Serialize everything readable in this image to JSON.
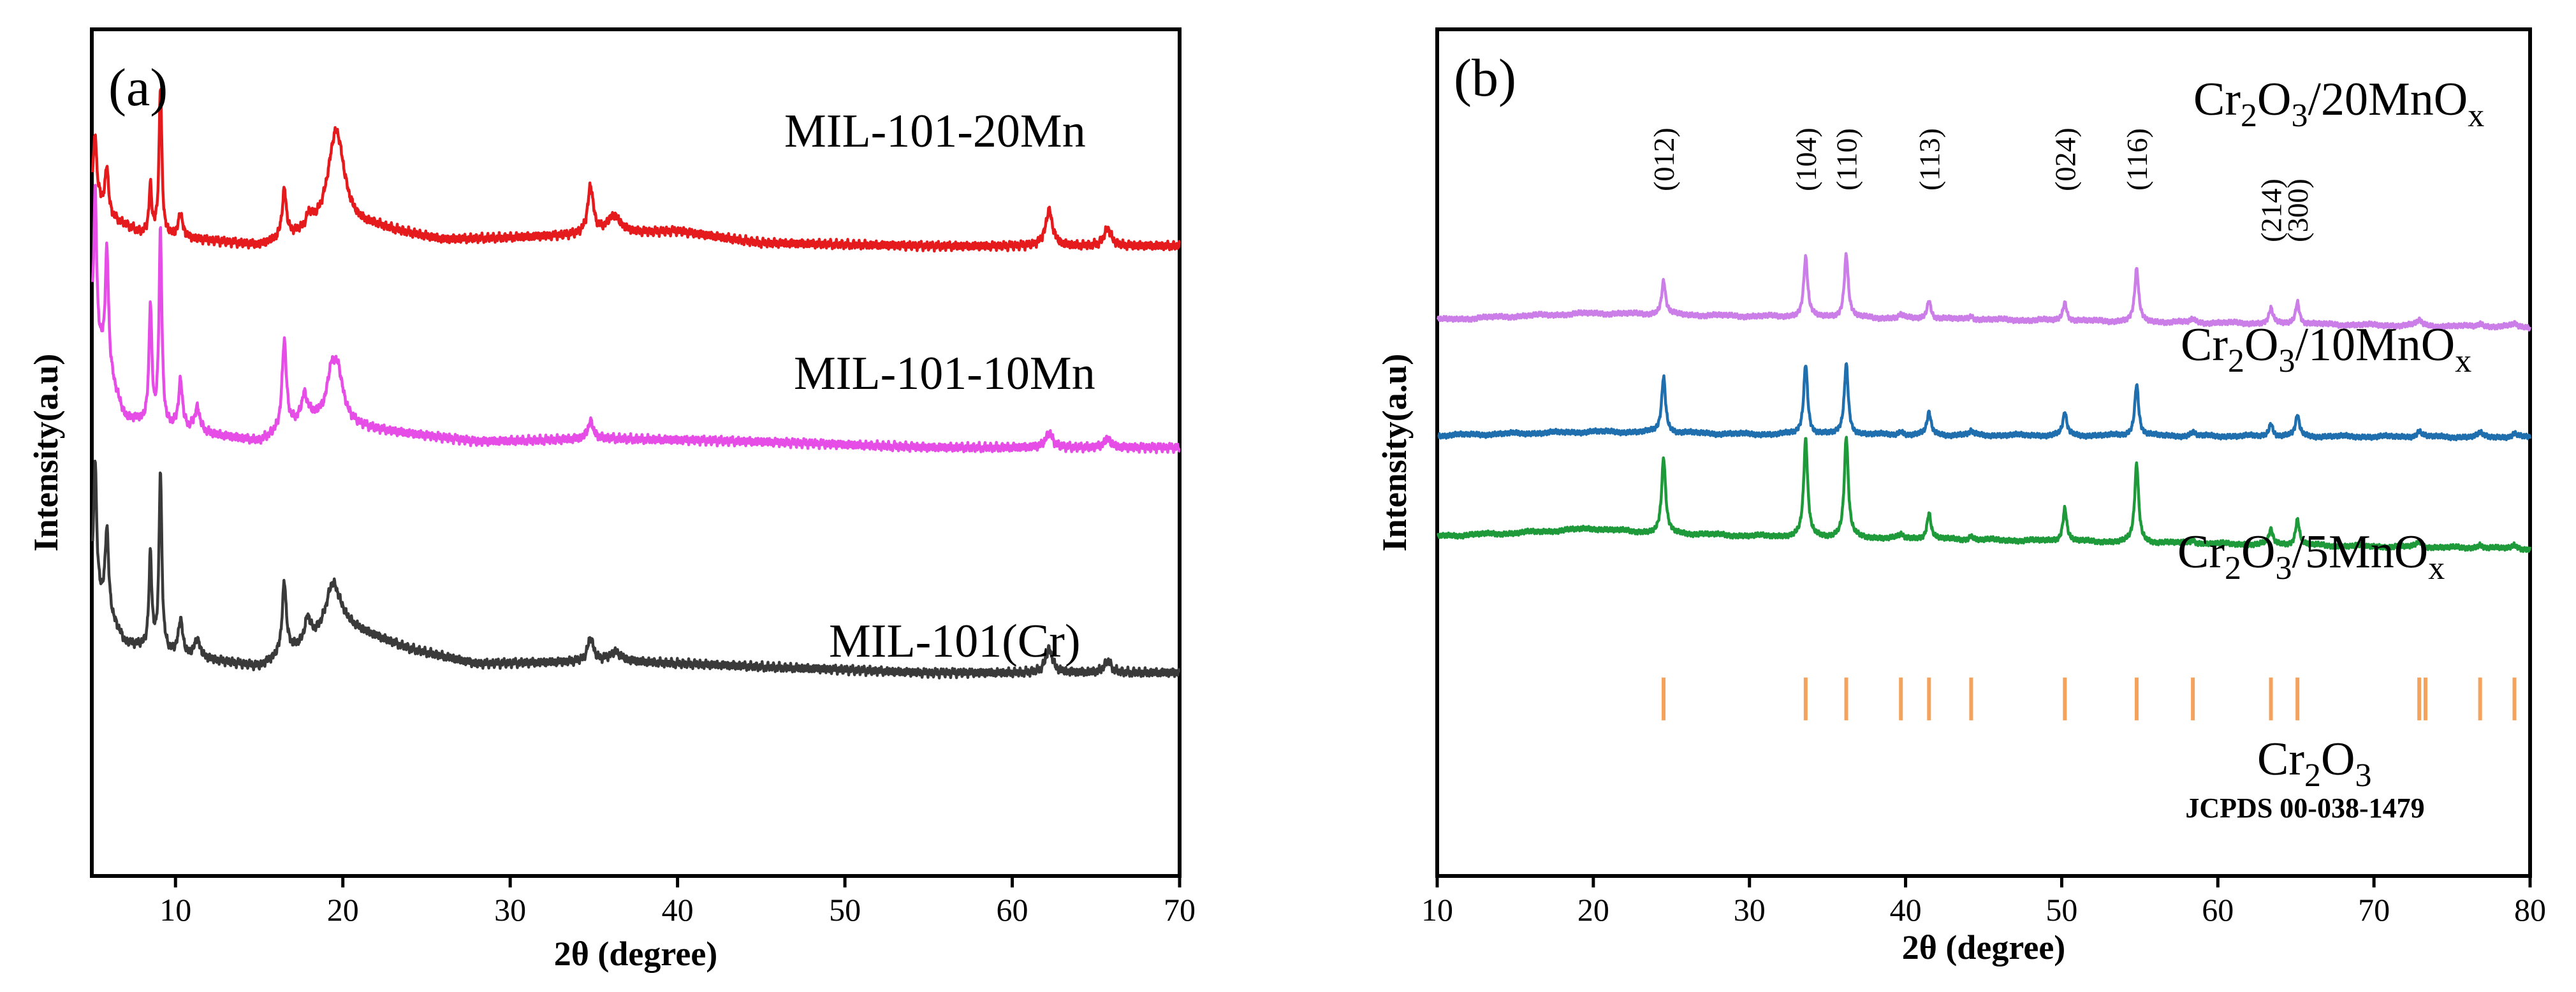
{
  "chart_data": [
    {
      "type": "line",
      "panel_label": "(a)",
      "xlabel": "2θ (degree)",
      "ylabel": "Intensity(a.u)",
      "xlim": [
        5,
        70
      ],
      "xticks": [
        10,
        20,
        30,
        40,
        50,
        60,
        70
      ],
      "yticks": [],
      "series": [
        {
          "name": "MIL-101-20Mn",
          "color": "#e41a1c",
          "offset": 0.72,
          "baseline": [
            [
              5,
              0.1
            ],
            [
              6,
              0.05
            ],
            [
              8,
              0.02
            ],
            [
              15,
              0.0
            ],
            [
              18,
              0.02
            ],
            [
              22,
              0.03
            ],
            [
              26,
              0.01
            ],
            [
              36,
              0.02
            ],
            [
              40,
              0.025
            ],
            [
              45,
              0.005
            ],
            [
              55,
              0.0
            ],
            [
              70,
              0.0
            ]
          ],
          "peaks": [
            [
              5.2,
              0.1,
              0.1
            ],
            [
              5.9,
              0.08,
              0.12
            ],
            [
              8.5,
              0.08,
              0.1
            ],
            [
              9.1,
              0.25,
              0.1
            ],
            [
              10.3,
              0.04,
              0.15
            ],
            [
              16.5,
              0.08,
              0.15
            ],
            [
              18.0,
              0.02,
              0.2
            ],
            [
              19.6,
              0.17,
              0.6
            ],
            [
              34.8,
              0.08,
              0.2
            ],
            [
              36.2,
              0.03,
              0.5
            ],
            [
              62.2,
              0.06,
              0.25
            ],
            [
              65.7,
              0.03,
              0.25
            ]
          ]
        },
        {
          "name": "MIL-101-10Mn",
          "color": "#e64ce6",
          "offset": 0.38,
          "baseline": [
            [
              5,
              0.2
            ],
            [
              7,
              0.05
            ],
            [
              10,
              0.03
            ],
            [
              15,
              0.01
            ],
            [
              18,
              0.05
            ],
            [
              22,
              0.03
            ],
            [
              28,
              0.01
            ],
            [
              36,
              0.015
            ],
            [
              45,
              0.01
            ],
            [
              55,
              0.0
            ],
            [
              70,
              0.0
            ]
          ],
          "peaks": [
            [
              5.2,
              0.25,
              0.1
            ],
            [
              5.9,
              0.2,
              0.12
            ],
            [
              8.5,
              0.2,
              0.1
            ],
            [
              9.1,
              0.33,
              0.1
            ],
            [
              10.3,
              0.08,
              0.15
            ],
            [
              11.3,
              0.04,
              0.2
            ],
            [
              16.5,
              0.15,
              0.15
            ],
            [
              17.7,
              0.04,
              0.2
            ],
            [
              19.3,
              0.06,
              0.3
            ],
            [
              19.7,
              0.08,
              0.4
            ],
            [
              34.8,
              0.03,
              0.2
            ],
            [
              62.2,
              0.025,
              0.25
            ],
            [
              65.7,
              0.015,
              0.25
            ]
          ]
        },
        {
          "name": "MIL-101(Cr)",
          "color": "#3a3a3a",
          "offset": 0.0,
          "baseline": [
            [
              5,
              0.15
            ],
            [
              7,
              0.05
            ],
            [
              10,
              0.03
            ],
            [
              15,
              0.01
            ],
            [
              18,
              0.05
            ],
            [
              20,
              0.08
            ],
            [
              24,
              0.04
            ],
            [
              28,
              0.015
            ],
            [
              36,
              0.02
            ],
            [
              45,
              0.01
            ],
            [
              55,
              0.0
            ],
            [
              70,
              0.0
            ]
          ],
          "peaks": [
            [
              5.2,
              0.22,
              0.1
            ],
            [
              5.9,
              0.14,
              0.12
            ],
            [
              8.5,
              0.16,
              0.1
            ],
            [
              9.1,
              0.3,
              0.1
            ],
            [
              10.3,
              0.06,
              0.15
            ],
            [
              11.3,
              0.03,
              0.2
            ],
            [
              16.5,
              0.12,
              0.15
            ],
            [
              17.9,
              0.04,
              0.2
            ],
            [
              19.4,
              0.08,
              0.5
            ],
            [
              34.8,
              0.04,
              0.2
            ],
            [
              36.3,
              0.015,
              0.4
            ],
            [
              62.2,
              0.04,
              0.25
            ],
            [
              65.7,
              0.02,
              0.25
            ]
          ]
        }
      ]
    },
    {
      "type": "line",
      "panel_label": "(b)",
      "xlabel": "2θ (degree)",
      "ylabel": "Intensity(a.u)",
      "xlim": [
        10,
        80
      ],
      "xticks": [
        10,
        20,
        30,
        40,
        50,
        60,
        70,
        80
      ],
      "yticks": [],
      "hkl_labels": [
        {
          "x": 24.5,
          "text": "(012)"
        },
        {
          "x": 33.6,
          "text": "(104)"
        },
        {
          "x": 36.2,
          "text": "(110)"
        },
        {
          "x": 41.5,
          "text": "(113)"
        },
        {
          "x": 50.2,
          "text": "(024)"
        },
        {
          "x": 54.8,
          "text": "(116)"
        },
        {
          "x": 63.4,
          "text": "(214)"
        },
        {
          "x": 65.1,
          "text": "(300)"
        }
      ],
      "reference": {
        "name": "Cr2O3",
        "card": "JCPDS 00-038-1479",
        "color": "#f5a35c",
        "positions": [
          24.5,
          33.6,
          36.2,
          39.7,
          41.5,
          44.2,
          50.2,
          54.8,
          58.4,
          63.4,
          65.1,
          72.9,
          73.3,
          76.8,
          79.0
        ]
      },
      "series": [
        {
          "name": "Cr2O3/20MnOx",
          "color": "#cc7ee8",
          "offset": 0.72,
          "baseline": [
            [
              10,
              0.0
            ],
            [
              15,
              0.01
            ],
            [
              20,
              0.018
            ],
            [
              24,
              0.015
            ],
            [
              30,
              0.01
            ],
            [
              80,
              -0.02
            ]
          ],
          "peaks": [
            [
              24.5,
              0.09,
              0.15
            ],
            [
              33.6,
              0.16,
              0.15
            ],
            [
              36.2,
              0.17,
              0.15
            ],
            [
              39.7,
              0.01,
              0.15
            ],
            [
              41.5,
              0.05,
              0.15
            ],
            [
              44.2,
              0.01,
              0.15
            ],
            [
              50.2,
              0.05,
              0.15
            ],
            [
              54.8,
              0.14,
              0.15
            ],
            [
              58.4,
              0.01,
              0.15
            ],
            [
              63.4,
              0.04,
              0.15
            ],
            [
              65.1,
              0.06,
              0.15
            ],
            [
              72.9,
              0.015,
              0.2
            ],
            [
              76.8,
              0.01,
              0.2
            ],
            [
              79.0,
              0.01,
              0.2
            ]
          ]
        },
        {
          "name": "Cr2O3/10MnOx",
          "color": "#1f6fae",
          "offset": 0.41,
          "baseline": [
            [
              10,
              0.0
            ],
            [
              15,
              0.005
            ],
            [
              20,
              0.01
            ],
            [
              24,
              0.008
            ],
            [
              30,
              0.003
            ],
            [
              80,
              -0.005
            ]
          ],
          "peaks": [
            [
              24.5,
              0.15,
              0.15
            ],
            [
              33.6,
              0.19,
              0.15
            ],
            [
              36.2,
              0.19,
              0.15
            ],
            [
              39.7,
              0.01,
              0.15
            ],
            [
              41.5,
              0.06,
              0.15
            ],
            [
              44.2,
              0.01,
              0.15
            ],
            [
              50.2,
              0.06,
              0.15
            ],
            [
              54.8,
              0.14,
              0.15
            ],
            [
              58.4,
              0.01,
              0.15
            ],
            [
              63.4,
              0.035,
              0.15
            ],
            [
              65.1,
              0.055,
              0.15
            ],
            [
              72.9,
              0.015,
              0.2
            ],
            [
              76.8,
              0.01,
              0.2
            ],
            [
              79.0,
              0.01,
              0.2
            ]
          ]
        },
        {
          "name": "Cr2O3/5MnOx",
          "color": "#1f9a3a",
          "offset": 0.14,
          "baseline": [
            [
              10,
              0.0
            ],
            [
              15,
              0.008
            ],
            [
              20,
              0.02
            ],
            [
              23,
              0.01
            ],
            [
              30,
              0.0
            ],
            [
              80,
              -0.035
            ]
          ],
          "peaks": [
            [
              24.5,
              0.2,
              0.15
            ],
            [
              33.6,
              0.26,
              0.15
            ],
            [
              36.2,
              0.27,
              0.15
            ],
            [
              39.7,
              0.01,
              0.15
            ],
            [
              41.5,
              0.07,
              0.15
            ],
            [
              44.2,
              0.01,
              0.15
            ],
            [
              50.2,
              0.09,
              0.15
            ],
            [
              54.8,
              0.21,
              0.15
            ],
            [
              58.4,
              0.01,
              0.15
            ],
            [
              63.4,
              0.04,
              0.15
            ],
            [
              65.1,
              0.07,
              0.15
            ],
            [
              72.9,
              0.015,
              0.2
            ],
            [
              76.8,
              0.01,
              0.2
            ],
            [
              79.0,
              0.01,
              0.2
            ]
          ]
        }
      ]
    }
  ]
}
